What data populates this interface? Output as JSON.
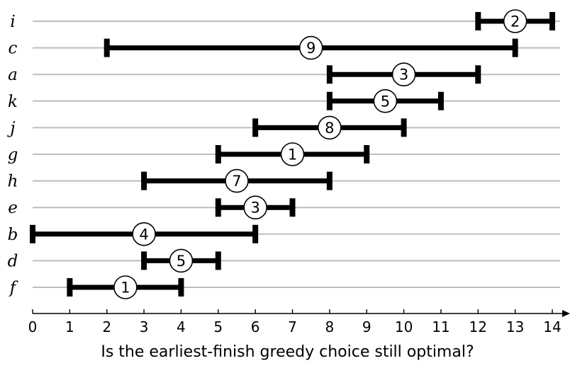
{
  "chart_data": {
    "type": "interval-diagram",
    "axis": {
      "min": 0,
      "max": 14,
      "ticks": [
        "0",
        "1",
        "2",
        "3",
        "4",
        "5",
        "6",
        "7",
        "8",
        "9",
        "10",
        "11",
        "12",
        "13",
        "14"
      ]
    },
    "caption": "Is the earliest-finish greedy choice still optimal?",
    "intervals": [
      {
        "label": "i",
        "start": 12,
        "end": 14,
        "weight": "2"
      },
      {
        "label": "c",
        "start": 2,
        "end": 13,
        "weight": "9"
      },
      {
        "label": "a",
        "start": 8,
        "end": 12,
        "weight": "3"
      },
      {
        "label": "k",
        "start": 8,
        "end": 11,
        "weight": "5"
      },
      {
        "label": "j",
        "start": 6,
        "end": 10,
        "weight": "8"
      },
      {
        "label": "g",
        "start": 5,
        "end": 9,
        "weight": "1"
      },
      {
        "label": "h",
        "start": 3,
        "end": 8,
        "weight": "7"
      },
      {
        "label": "e",
        "start": 5,
        "end": 7,
        "weight": "3"
      },
      {
        "label": "b",
        "start": 0,
        "end": 6,
        "weight": "4"
      },
      {
        "label": "d",
        "start": 3,
        "end": 5,
        "weight": "5"
      },
      {
        "label": "f",
        "start": 1,
        "end": 4,
        "weight": "1"
      }
    ]
  }
}
